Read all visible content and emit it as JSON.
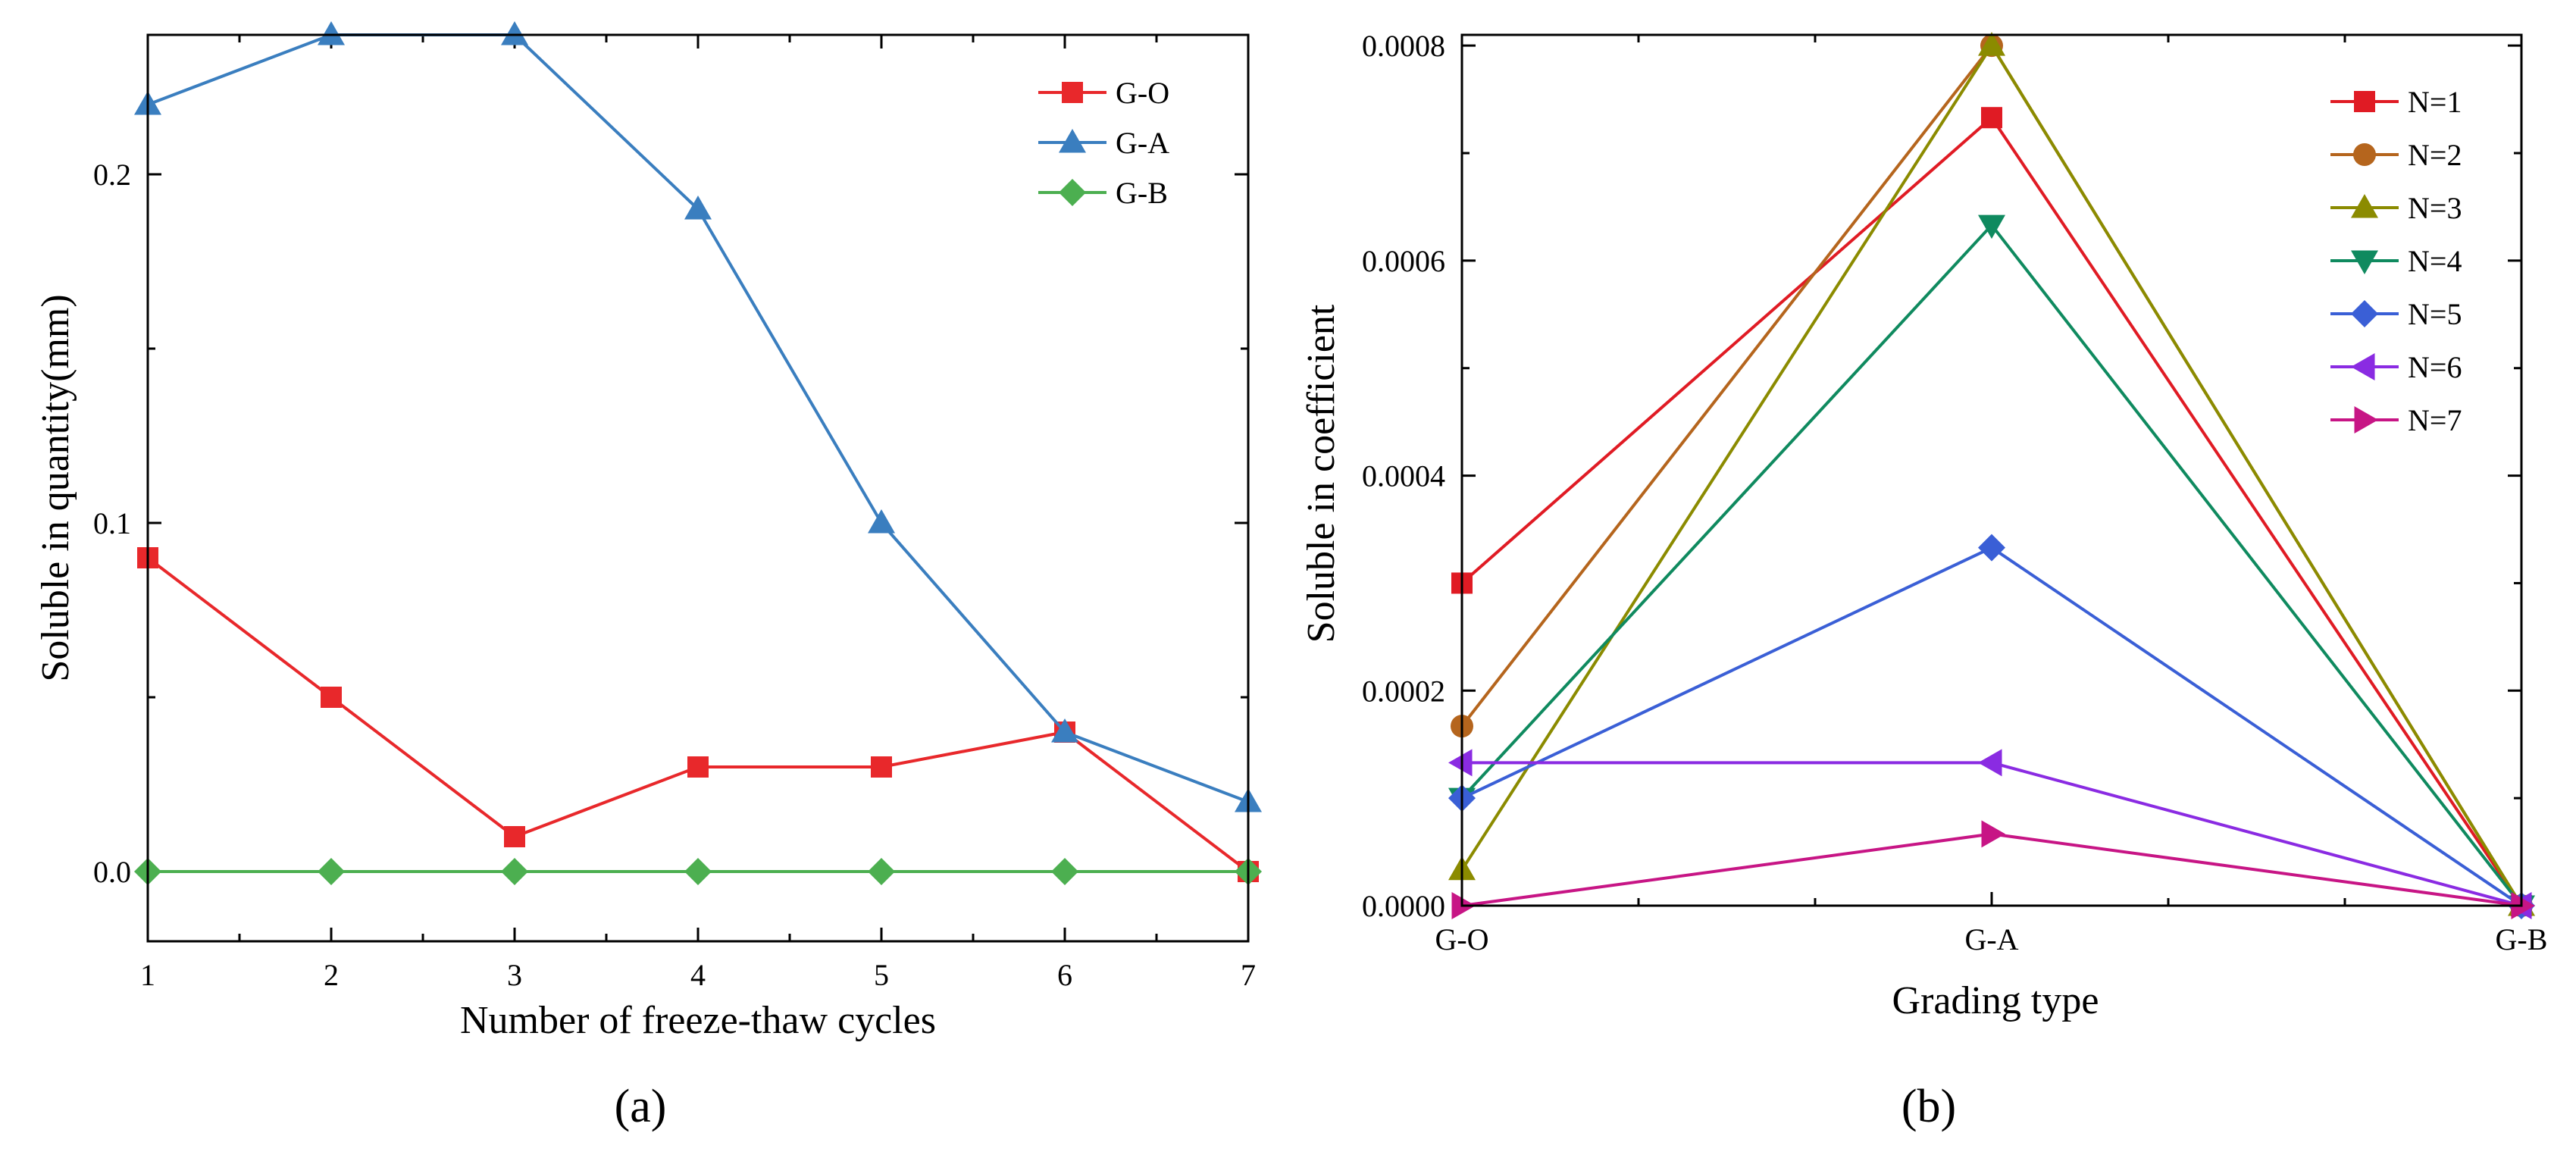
{
  "figure": {
    "panel_a_label": "(a)",
    "panel_b_label": "(b)"
  },
  "chart_data": [
    {
      "type": "line",
      "panel": "a",
      "title": "",
      "xlabel": "Number of freeze-thaw cycles",
      "ylabel": "Soluble in quantity(mm)",
      "x": [
        1,
        2,
        3,
        4,
        5,
        6,
        7
      ],
      "xlim": [
        1,
        7
      ],
      "ylim": [
        -0.02,
        0.24
      ],
      "x_ticks": [
        1,
        2,
        3,
        4,
        5,
        6,
        7
      ],
      "x_tick_labels": [
        "1",
        "2",
        "3",
        "4",
        "5",
        "6",
        "7"
      ],
      "y_ticks": [
        0.0,
        0.1,
        0.2
      ],
      "y_tick_labels": [
        "0.0",
        "0.1",
        "0.2"
      ],
      "y_minor_ticks": [
        0.05,
        0.15
      ],
      "grid": false,
      "legend_position": "top-right",
      "series": [
        {
          "name": "G-O",
          "color": "#e8282b",
          "marker": "square",
          "values": [
            0.09,
            0.05,
            0.01,
            0.03,
            0.03,
            0.04,
            0.0
          ]
        },
        {
          "name": "G-A",
          "color": "#3a7ebf",
          "marker": "triangle-up",
          "values": [
            0.22,
            0.24,
            0.24,
            0.19,
            0.1,
            0.04,
            0.02
          ]
        },
        {
          "name": "G-B",
          "color": "#4caf50",
          "marker": "diamond",
          "values": [
            0.0,
            0.0,
            0.0,
            0.0,
            0.0,
            0.0,
            0.0
          ]
        }
      ]
    },
    {
      "type": "line",
      "panel": "b",
      "title": "",
      "xlabel": "Grading type",
      "ylabel": "Soluble in coefficient",
      "categories": [
        "G-O",
        "G-A",
        "G-B"
      ],
      "ylim": [
        0,
        0.00081
      ],
      "y_ticks": [
        0.0,
        0.0002,
        0.0004,
        0.0006,
        0.0008
      ],
      "y_tick_labels": [
        "0.0000",
        "0.0002",
        "0.0004",
        "0.0006",
        "0.0008"
      ],
      "y_minor_ticks": [
        0.0001,
        0.0003,
        0.0005,
        0.0007
      ],
      "grid": false,
      "legend_position": "top-right",
      "series": [
        {
          "name": "N=1",
          "color": "#e01b24",
          "marker": "square",
          "values": [
            0.0003,
            0.000733,
            0.0
          ]
        },
        {
          "name": "N=2",
          "color": "#b5651d",
          "marker": "circle",
          "values": [
            0.000167,
            0.0008,
            0.0
          ]
        },
        {
          "name": "N=3",
          "color": "#8b8b00",
          "marker": "triangle-up",
          "values": [
            3.33e-05,
            0.0008,
            0.0
          ]
        },
        {
          "name": "N=4",
          "color": "#0f8a5f",
          "marker": "triangle-down",
          "values": [
            0.0001,
            0.000633,
            0.0
          ]
        },
        {
          "name": "N=5",
          "color": "#3a5fd6",
          "marker": "diamond",
          "values": [
            0.0001,
            0.000333,
            0.0
          ]
        },
        {
          "name": "N=6",
          "color": "#8a2be2",
          "marker": "triangle-left",
          "values": [
            0.000133,
            0.000133,
            0.0
          ]
        },
        {
          "name": "N=7",
          "color": "#c71585",
          "marker": "triangle-right",
          "values": [
            0.0,
            6.67e-05,
            0.0
          ]
        }
      ]
    }
  ]
}
